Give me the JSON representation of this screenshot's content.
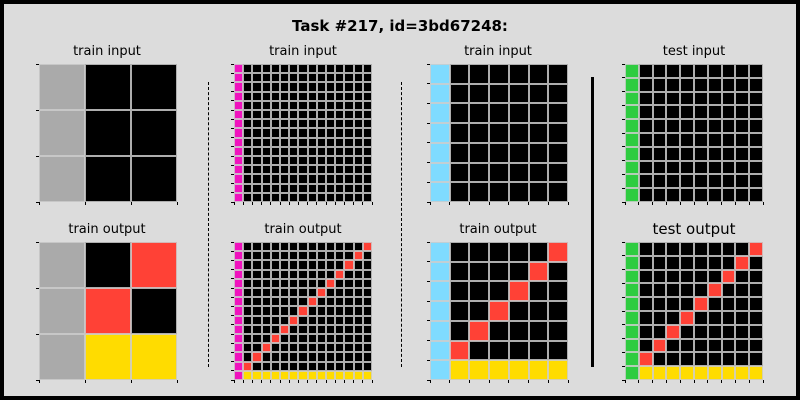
{
  "title": "Task #217, id=3bd67248:",
  "colors": {
    "0": "#000000",
    "2": "#FF4136",
    "4": "#FFDC00",
    "3": "#2ECC40",
    "5": "#AAAAAA",
    "6": "#F012BE",
    "8": "#7FDBFF"
  },
  "panels": [
    {
      "label": "train input",
      "grid": [
        [
          5,
          0,
          0
        ],
        [
          5,
          0,
          0
        ],
        [
          5,
          0,
          0
        ]
      ]
    },
    {
      "label": "train output",
      "grid": [
        [
          5,
          0,
          2
        ],
        [
          5,
          2,
          0
        ],
        [
          5,
          4,
          4
        ]
      ]
    },
    {
      "label": "train input",
      "grid": [
        [
          6,
          0,
          0,
          0,
          0,
          0,
          0,
          0,
          0,
          0,
          0,
          0,
          0,
          0,
          0
        ],
        [
          6,
          0,
          0,
          0,
          0,
          0,
          0,
          0,
          0,
          0,
          0,
          0,
          0,
          0,
          0
        ],
        [
          6,
          0,
          0,
          0,
          0,
          0,
          0,
          0,
          0,
          0,
          0,
          0,
          0,
          0,
          0
        ],
        [
          6,
          0,
          0,
          0,
          0,
          0,
          0,
          0,
          0,
          0,
          0,
          0,
          0,
          0,
          0
        ],
        [
          6,
          0,
          0,
          0,
          0,
          0,
          0,
          0,
          0,
          0,
          0,
          0,
          0,
          0,
          0
        ],
        [
          6,
          0,
          0,
          0,
          0,
          0,
          0,
          0,
          0,
          0,
          0,
          0,
          0,
          0,
          0
        ],
        [
          6,
          0,
          0,
          0,
          0,
          0,
          0,
          0,
          0,
          0,
          0,
          0,
          0,
          0,
          0
        ],
        [
          6,
          0,
          0,
          0,
          0,
          0,
          0,
          0,
          0,
          0,
          0,
          0,
          0,
          0,
          0
        ],
        [
          6,
          0,
          0,
          0,
          0,
          0,
          0,
          0,
          0,
          0,
          0,
          0,
          0,
          0,
          0
        ],
        [
          6,
          0,
          0,
          0,
          0,
          0,
          0,
          0,
          0,
          0,
          0,
          0,
          0,
          0,
          0
        ],
        [
          6,
          0,
          0,
          0,
          0,
          0,
          0,
          0,
          0,
          0,
          0,
          0,
          0,
          0,
          0
        ],
        [
          6,
          0,
          0,
          0,
          0,
          0,
          0,
          0,
          0,
          0,
          0,
          0,
          0,
          0,
          0
        ],
        [
          6,
          0,
          0,
          0,
          0,
          0,
          0,
          0,
          0,
          0,
          0,
          0,
          0,
          0,
          0
        ],
        [
          6,
          0,
          0,
          0,
          0,
          0,
          0,
          0,
          0,
          0,
          0,
          0,
          0,
          0,
          0
        ],
        [
          6,
          0,
          0,
          0,
          0,
          0,
          0,
          0,
          0,
          0,
          0,
          0,
          0,
          0,
          0
        ]
      ]
    },
    {
      "label": "train output",
      "grid": [
        [
          6,
          0,
          0,
          0,
          0,
          0,
          0,
          0,
          0,
          0,
          0,
          0,
          0,
          0,
          2
        ],
        [
          6,
          0,
          0,
          0,
          0,
          0,
          0,
          0,
          0,
          0,
          0,
          0,
          0,
          2,
          0
        ],
        [
          6,
          0,
          0,
          0,
          0,
          0,
          0,
          0,
          0,
          0,
          0,
          0,
          2,
          0,
          0
        ],
        [
          6,
          0,
          0,
          0,
          0,
          0,
          0,
          0,
          0,
          0,
          0,
          2,
          0,
          0,
          0
        ],
        [
          6,
          0,
          0,
          0,
          0,
          0,
          0,
          0,
          0,
          0,
          2,
          0,
          0,
          0,
          0
        ],
        [
          6,
          0,
          0,
          0,
          0,
          0,
          0,
          0,
          0,
          2,
          0,
          0,
          0,
          0,
          0
        ],
        [
          6,
          0,
          0,
          0,
          0,
          0,
          0,
          0,
          2,
          0,
          0,
          0,
          0,
          0,
          0
        ],
        [
          6,
          0,
          0,
          0,
          0,
          0,
          0,
          2,
          0,
          0,
          0,
          0,
          0,
          0,
          0
        ],
        [
          6,
          0,
          0,
          0,
          0,
          0,
          2,
          0,
          0,
          0,
          0,
          0,
          0,
          0,
          0
        ],
        [
          6,
          0,
          0,
          0,
          0,
          2,
          0,
          0,
          0,
          0,
          0,
          0,
          0,
          0,
          0
        ],
        [
          6,
          0,
          0,
          0,
          2,
          0,
          0,
          0,
          0,
          0,
          0,
          0,
          0,
          0,
          0
        ],
        [
          6,
          0,
          0,
          2,
          0,
          0,
          0,
          0,
          0,
          0,
          0,
          0,
          0,
          0,
          0
        ],
        [
          6,
          0,
          2,
          0,
          0,
          0,
          0,
          0,
          0,
          0,
          0,
          0,
          0,
          0,
          0
        ],
        [
          6,
          2,
          0,
          0,
          0,
          0,
          0,
          0,
          0,
          0,
          0,
          0,
          0,
          0,
          0
        ],
        [
          6,
          4,
          4,
          4,
          4,
          4,
          4,
          4,
          4,
          4,
          4,
          4,
          4,
          4,
          4
        ]
      ]
    },
    {
      "label": "train input",
      "grid": [
        [
          8,
          0,
          0,
          0,
          0,
          0,
          0
        ],
        [
          8,
          0,
          0,
          0,
          0,
          0,
          0
        ],
        [
          8,
          0,
          0,
          0,
          0,
          0,
          0
        ],
        [
          8,
          0,
          0,
          0,
          0,
          0,
          0
        ],
        [
          8,
          0,
          0,
          0,
          0,
          0,
          0
        ],
        [
          8,
          0,
          0,
          0,
          0,
          0,
          0
        ],
        [
          8,
          0,
          0,
          0,
          0,
          0,
          0
        ]
      ]
    },
    {
      "label": "train output",
      "grid": [
        [
          8,
          0,
          0,
          0,
          0,
          0,
          2
        ],
        [
          8,
          0,
          0,
          0,
          0,
          2,
          0
        ],
        [
          8,
          0,
          0,
          0,
          2,
          0,
          0
        ],
        [
          8,
          0,
          0,
          2,
          0,
          0,
          0
        ],
        [
          8,
          0,
          2,
          0,
          0,
          0,
          0
        ],
        [
          8,
          2,
          0,
          0,
          0,
          0,
          0
        ],
        [
          8,
          4,
          4,
          4,
          4,
          4,
          4
        ]
      ]
    },
    {
      "label": "test input",
      "grid": [
        [
          3,
          0,
          0,
          0,
          0,
          0,
          0,
          0,
          0,
          0
        ],
        [
          3,
          0,
          0,
          0,
          0,
          0,
          0,
          0,
          0,
          0
        ],
        [
          3,
          0,
          0,
          0,
          0,
          0,
          0,
          0,
          0,
          0
        ],
        [
          3,
          0,
          0,
          0,
          0,
          0,
          0,
          0,
          0,
          0
        ],
        [
          3,
          0,
          0,
          0,
          0,
          0,
          0,
          0,
          0,
          0
        ],
        [
          3,
          0,
          0,
          0,
          0,
          0,
          0,
          0,
          0,
          0
        ],
        [
          3,
          0,
          0,
          0,
          0,
          0,
          0,
          0,
          0,
          0
        ],
        [
          3,
          0,
          0,
          0,
          0,
          0,
          0,
          0,
          0,
          0
        ],
        [
          3,
          0,
          0,
          0,
          0,
          0,
          0,
          0,
          0,
          0
        ],
        [
          3,
          0,
          0,
          0,
          0,
          0,
          0,
          0,
          0,
          0
        ]
      ]
    },
    {
      "label": "test output",
      "grid": [
        [
          3,
          0,
          0,
          0,
          0,
          0,
          0,
          0,
          0,
          2
        ],
        [
          3,
          0,
          0,
          0,
          0,
          0,
          0,
          0,
          2,
          0
        ],
        [
          3,
          0,
          0,
          0,
          0,
          0,
          0,
          2,
          0,
          0
        ],
        [
          3,
          0,
          0,
          0,
          0,
          0,
          2,
          0,
          0,
          0
        ],
        [
          3,
          0,
          0,
          0,
          0,
          2,
          0,
          0,
          0,
          0
        ],
        [
          3,
          0,
          0,
          0,
          2,
          0,
          0,
          0,
          0,
          0
        ],
        [
          3,
          0,
          0,
          2,
          0,
          0,
          0,
          0,
          0,
          0
        ],
        [
          3,
          0,
          2,
          0,
          0,
          0,
          0,
          0,
          0,
          0
        ],
        [
          3,
          2,
          0,
          0,
          0,
          0,
          0,
          0,
          0,
          0
        ],
        [
          3,
          4,
          4,
          4,
          4,
          4,
          4,
          4,
          4,
          4
        ]
      ]
    }
  ]
}
